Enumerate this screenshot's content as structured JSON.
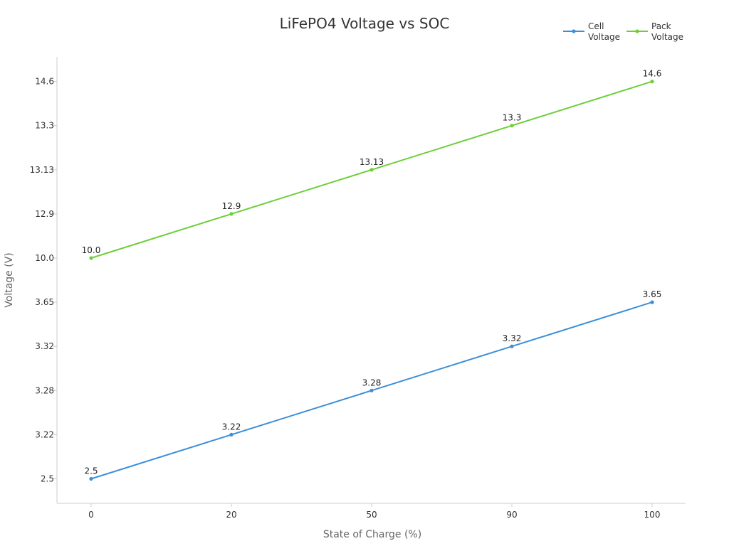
{
  "chart_data": {
    "type": "line",
    "title": "LiFePO4 Voltage vs SOC",
    "xlabel": "State of Charge (%)",
    "ylabel": "Voltage (V)",
    "x_scale": "categorical",
    "y_scale": "categorical",
    "categories": [
      "0",
      "20",
      "50",
      "90",
      "100"
    ],
    "y_categories": [
      "2.5",
      "3.22",
      "3.28",
      "3.32",
      "3.65",
      "10.0",
      "12.9",
      "13.13",
      "13.3",
      "14.6"
    ],
    "grid": false,
    "legend_position": "top-right",
    "series": [
      {
        "name": "Cell Voltage",
        "color": "#3b8fd9",
        "values": [
          "2.5",
          "3.22",
          "3.28",
          "3.32",
          "3.65"
        ]
      },
      {
        "name": "Pack Voltage",
        "color": "#6dcf3a",
        "values": [
          "10.0",
          "12.9",
          "13.13",
          "13.3",
          "14.6"
        ]
      }
    ]
  }
}
